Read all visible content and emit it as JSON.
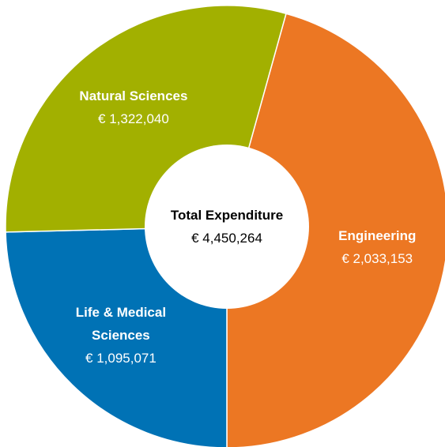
{
  "chart_data": {
    "type": "donut",
    "categories": [
      "Engineering",
      "Life & Medical Sciences",
      "Natural Sciences"
    ],
    "values": [
      2033153,
      1095071,
      1322040
    ],
    "value_labels": [
      "€ 2,033,153",
      "€ 1,095,071",
      "€ 1,322,040"
    ],
    "colors": [
      "#ec7723",
      "#0072b5",
      "#a2b000"
    ],
    "center": {
      "title": "Total Expenditure",
      "value_label": "€ 4,450,264"
    }
  }
}
